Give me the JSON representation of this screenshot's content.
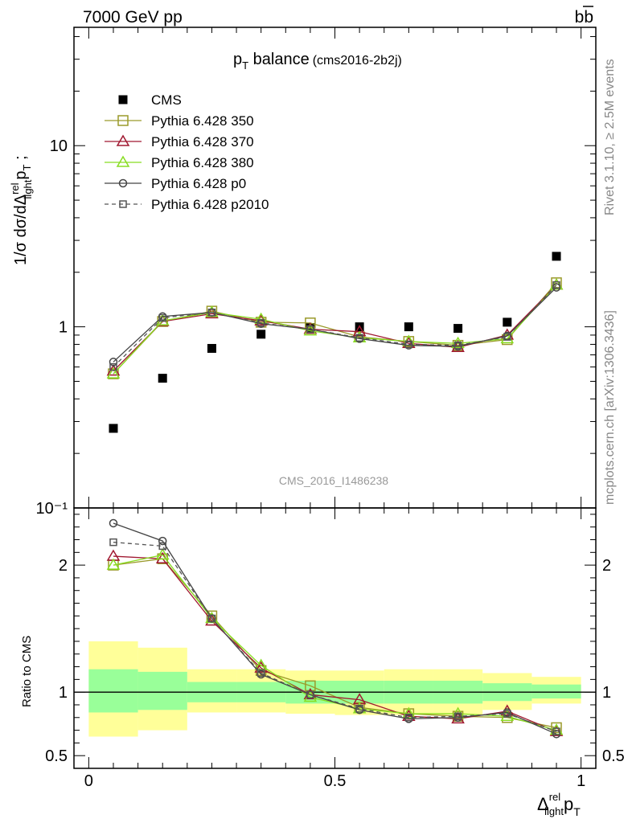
{
  "header": {
    "energy_label": "7000 GeV pp",
    "process_label": "bb",
    "side_label_top": "Rivet 3.1.10, ≥ 2.5M events",
    "side_label_bottom": "mcplots.cern.ch [arXiv:1306.3436]"
  },
  "chart_data": [
    {
      "type": "scatter",
      "panel": "main",
      "title_main": "p",
      "title_sub": "T",
      "title_rest": " balance",
      "title_tag": "(cms2016-2b2j)",
      "watermark": "CMS_2016_I1486238",
      "ylabel": "1/σ dσ/dΔ",
      "ylabel_sup": "rel",
      "ylabel_sub": "light",
      "ylabel_tail": "p",
      "ylabel_tail_sub": "T",
      "ylabel_tail_end": " ;",
      "yscale": "log",
      "ylim": [
        0.1,
        45
      ],
      "xlim": [
        -0.03,
        1.03
      ],
      "yticks": [
        {
          "value": 0.1,
          "label": "10⁻¹"
        },
        {
          "value": 1,
          "label": "1"
        },
        {
          "value": 10,
          "label": "10"
        }
      ],
      "x": [
        0.05,
        0.15,
        0.25,
        0.35,
        0.45,
        0.55,
        0.65,
        0.75,
        0.85,
        0.95
      ],
      "series": [
        {
          "name": "CMS",
          "marker": "square-filled",
          "color": "#000000",
          "dash": "none",
          "values": [
            0.275,
            0.52,
            0.76,
            0.91,
            0.99,
            1.0,
            1.0,
            0.98,
            1.06,
            2.45
          ]
        },
        {
          "name": "Pythia 6.428 350",
          "marker": "square-open",
          "color": "#9a9a2a",
          "dash": "solid",
          "values": [
            0.55,
            1.07,
            1.22,
            1.06,
            1.05,
            0.88,
            0.83,
            0.79,
            0.85,
            1.75
          ]
        },
        {
          "name": "Pythia 6.428 370",
          "marker": "triangle-open",
          "color": "#a01830",
          "dash": "solid",
          "values": [
            0.57,
            1.07,
            1.18,
            1.08,
            0.97,
            0.94,
            0.81,
            0.77,
            0.9,
            1.7
          ]
        },
        {
          "name": "Pythia 6.428 380",
          "marker": "triangle-open",
          "color": "#88dd22",
          "dash": "solid",
          "values": [
            0.55,
            1.08,
            1.2,
            1.1,
            0.95,
            0.87,
            0.83,
            0.81,
            0.86,
            1.7
          ]
        },
        {
          "name": "Pythia 6.428 p0",
          "marker": "circle-open",
          "color": "#444444",
          "dash": "solid",
          "values": [
            0.64,
            1.14,
            1.2,
            1.04,
            0.97,
            0.86,
            0.79,
            0.78,
            0.89,
            1.65
          ]
        },
        {
          "name": "Pythia 6.428 p2010",
          "marker": "square-small-open",
          "color": "#555555",
          "dash": "dashed",
          "values": [
            0.6,
            1.12,
            1.2,
            1.05,
            0.97,
            0.87,
            0.8,
            0.79,
            0.88,
            1.7
          ]
        }
      ],
      "legend_position": "top-left"
    },
    {
      "type": "scatter",
      "panel": "ratio",
      "ylabel": "Ratio to CMS",
      "ylim": [
        0.4,
        2.45
      ],
      "xlim": [
        -0.03,
        1.03
      ],
      "yticks": [
        {
          "value": 0.5,
          "label": "0.5"
        },
        {
          "value": 1,
          "label": "1"
        },
        {
          "value": 2,
          "label": "2"
        }
      ],
      "xticks": [
        {
          "value": 0,
          "label": "0"
        },
        {
          "value": 0.5,
          "label": "0.5"
        },
        {
          "value": 1,
          "label": "1"
        }
      ],
      "xlabel": "Δ",
      "xlabel_sup": "rel",
      "xlabel_sub": "light",
      "xlabel_tail": "p",
      "xlabel_tail_sub": "T",
      "bands": {
        "edges": [
          0.0,
          0.1,
          0.2,
          0.3,
          0.4,
          0.5,
          0.6,
          0.7,
          0.8,
          0.9,
          1.0
        ],
        "yellow_lo": [
          0.65,
          0.7,
          0.84,
          0.84,
          0.83,
          0.82,
          0.82,
          0.82,
          0.86,
          0.91
        ],
        "yellow_hi": [
          1.4,
          1.35,
          1.18,
          1.18,
          1.17,
          1.17,
          1.18,
          1.18,
          1.15,
          1.12
        ],
        "green_lo": [
          0.84,
          0.86,
          0.92,
          0.92,
          0.91,
          0.91,
          0.91,
          0.91,
          0.93,
          0.95
        ],
        "green_hi": [
          1.18,
          1.16,
          1.08,
          1.08,
          1.09,
          1.09,
          1.09,
          1.09,
          1.07,
          1.06
        ]
      },
      "reference_line": 1,
      "x": [
        0.05,
        0.15,
        0.25,
        0.35,
        0.45,
        0.55,
        0.65,
        0.75,
        0.85,
        0.95
      ],
      "series": [
        {
          "name": "Pythia 6.428 350",
          "marker": "square-open",
          "color": "#9a9a2a",
          "dash": "solid",
          "values": [
            2.0,
            2.05,
            1.6,
            1.17,
            1.05,
            0.88,
            0.83,
            0.81,
            0.8,
            0.72
          ]
        },
        {
          "name": "Pythia 6.428 370",
          "marker": "triangle-open",
          "color": "#a01830",
          "dash": "solid",
          "values": [
            2.07,
            2.05,
            1.56,
            1.19,
            0.98,
            0.94,
            0.81,
            0.79,
            0.85,
            0.69
          ]
        },
        {
          "name": "Pythia 6.428 380",
          "marker": "triangle-open",
          "color": "#88dd22",
          "dash": "solid",
          "values": [
            2.0,
            2.08,
            1.58,
            1.21,
            0.96,
            0.87,
            0.83,
            0.83,
            0.81,
            0.7
          ]
        },
        {
          "name": "Pythia 6.428 p0",
          "marker": "circle-open",
          "color": "#444444",
          "dash": "solid",
          "values": [
            2.33,
            2.19,
            1.58,
            1.14,
            0.98,
            0.86,
            0.79,
            0.8,
            0.84,
            0.67
          ]
        },
        {
          "name": "Pythia 6.428 p2010",
          "marker": "square-small-open",
          "color": "#555555",
          "dash": "dashed",
          "values": [
            2.18,
            2.15,
            1.58,
            1.15,
            0.98,
            0.87,
            0.8,
            0.81,
            0.83,
            0.69
          ]
        }
      ]
    }
  ]
}
